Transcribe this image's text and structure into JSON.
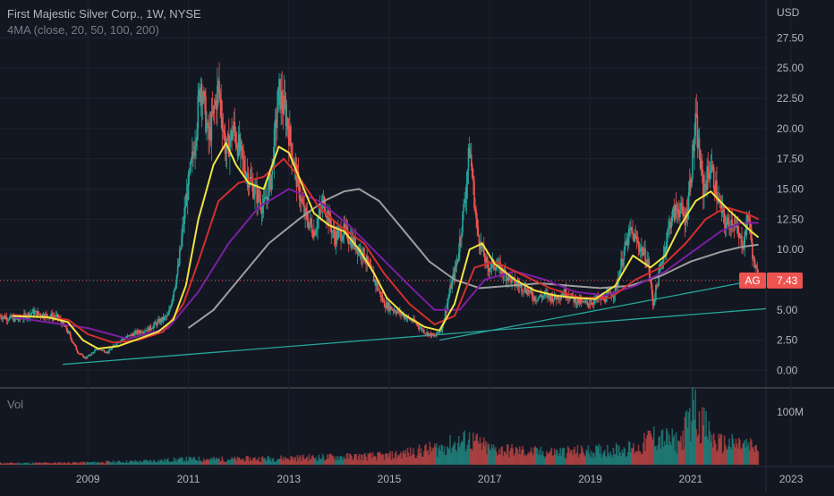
{
  "header": {
    "title": "First Majestic Silver Corp., 1W, NYSE",
    "indicator": "4MA (close, 20, 50, 100, 200)"
  },
  "chart_data": {
    "type": "line",
    "symbol": "AG",
    "last_price": "7.43",
    "currency_label": "USD",
    "x_ticks": [
      "2009",
      "2011",
      "2013",
      "2015",
      "2017",
      "2019",
      "2021",
      "2023"
    ],
    "y_ticks": [
      "27.50",
      "25.00",
      "22.50",
      "20.00",
      "17.50",
      "15.00",
      "12.50",
      "10.00",
      "7.50",
      "5.00",
      "2.50",
      "0.00"
    ],
    "ylim": [
      -1.0,
      29.0
    ],
    "xlim": [
      2007.25,
      2022.5
    ],
    "volume_label": "Vol",
    "volume_tick": "100M",
    "grid": true,
    "colors": {
      "background": "#131722",
      "up": "#26a69a",
      "down": "#ef5350",
      "ma20": "#f0e442",
      "ma50": "#d32f2f",
      "ma100": "#7b1fa2",
      "ma200": "#9e9e9e",
      "trendline": "#26a69a",
      "price_line": "#ef5350"
    },
    "price_points": [
      [
        2007.25,
        4.5
      ],
      [
        2007.6,
        4.2
      ],
      [
        2007.9,
        4.8
      ],
      [
        2008.1,
        4.6
      ],
      [
        2008.4,
        4.4
      ],
      [
        2008.6,
        3.2
      ],
      [
        2008.8,
        1.5
      ],
      [
        2008.95,
        1.0
      ],
      [
        2009.2,
        1.8
      ],
      [
        2009.4,
        1.5
      ],
      [
        2009.6,
        2.4
      ],
      [
        2009.8,
        2.8
      ],
      [
        2010.0,
        3.2
      ],
      [
        2010.2,
        3.4
      ],
      [
        2010.4,
        4.0
      ],
      [
        2010.6,
        4.5
      ],
      [
        2010.8,
        8.5
      ],
      [
        2010.95,
        14.0
      ],
      [
        2011.1,
        18.0
      ],
      [
        2011.25,
        24.0
      ],
      [
        2011.4,
        19.0
      ],
      [
        2011.6,
        23.5
      ],
      [
        2011.75,
        18.0
      ],
      [
        2011.9,
        20.0
      ],
      [
        2012.1,
        17.0
      ],
      [
        2012.3,
        15.0
      ],
      [
        2012.5,
        13.5
      ],
      [
        2012.65,
        16.0
      ],
      [
        2012.8,
        23.0
      ],
      [
        2012.95,
        21.0
      ],
      [
        2013.15,
        16.0
      ],
      [
        2013.3,
        13.0
      ],
      [
        2013.5,
        11.5
      ],
      [
        2013.7,
        14.0
      ],
      [
        2013.9,
        11.0
      ],
      [
        2014.1,
        11.5
      ],
      [
        2014.3,
        10.5
      ],
      [
        2014.5,
        9.5
      ],
      [
        2014.7,
        7.5
      ],
      [
        2014.9,
        5.5
      ],
      [
        2015.1,
        5.0
      ],
      [
        2015.3,
        4.5
      ],
      [
        2015.5,
        4.0
      ],
      [
        2015.7,
        3.2
      ],
      [
        2015.9,
        2.8
      ],
      [
        2016.05,
        3.5
      ],
      [
        2016.2,
        6.5
      ],
      [
        2016.35,
        9.0
      ],
      [
        2016.5,
        14.0
      ],
      [
        2016.6,
        18.5
      ],
      [
        2016.75,
        11.5
      ],
      [
        2016.95,
        8.5
      ],
      [
        2017.1,
        8.8
      ],
      [
        2017.3,
        8.0
      ],
      [
        2017.5,
        7.2
      ],
      [
        2017.7,
        6.8
      ],
      [
        2017.9,
        6.0
      ],
      [
        2018.1,
        6.2
      ],
      [
        2018.3,
        6.0
      ],
      [
        2018.5,
        6.5
      ],
      [
        2018.7,
        5.8
      ],
      [
        2018.9,
        5.5
      ],
      [
        2019.1,
        5.8
      ],
      [
        2019.3,
        6.0
      ],
      [
        2019.5,
        6.5
      ],
      [
        2019.65,
        9.5
      ],
      [
        2019.8,
        11.5
      ],
      [
        2019.95,
        10.5
      ],
      [
        2020.15,
        9.0
      ],
      [
        2020.25,
        5.5
      ],
      [
        2020.45,
        9.5
      ],
      [
        2020.6,
        12.5
      ],
      [
        2020.75,
        13.5
      ],
      [
        2020.9,
        12.5
      ],
      [
        2021.0,
        16.0
      ],
      [
        2021.1,
        20.5
      ],
      [
        2021.25,
        15.0
      ],
      [
        2021.4,
        17.0
      ],
      [
        2021.55,
        14.0
      ],
      [
        2021.7,
        12.0
      ],
      [
        2021.85,
        12.5
      ],
      [
        2021.95,
        11.0
      ],
      [
        2022.05,
        10.5
      ],
      [
        2022.15,
        13.0
      ],
      [
        2022.25,
        9.0
      ],
      [
        2022.35,
        7.43
      ]
    ],
    "ma20": [
      [
        2007.5,
        4.5
      ],
      [
        2008.2,
        4.4
      ],
      [
        2008.6,
        4.0
      ],
      [
        2008.9,
        2.5
      ],
      [
        2009.2,
        1.8
      ],
      [
        2009.6,
        2.0
      ],
      [
        2010.0,
        2.6
      ],
      [
        2010.4,
        3.2
      ],
      [
        2010.7,
        4.2
      ],
      [
        2010.95,
        7.0
      ],
      [
        2011.2,
        12.5
      ],
      [
        2011.5,
        17.0
      ],
      [
        2011.75,
        18.8
      ],
      [
        2011.95,
        17.0
      ],
      [
        2012.2,
        15.5
      ],
      [
        2012.5,
        15.0
      ],
      [
        2012.8,
        18.5
      ],
      [
        2013.0,
        18.0
      ],
      [
        2013.25,
        15.5
      ],
      [
        2013.5,
        13.0
      ],
      [
        2013.8,
        12.0
      ],
      [
        2014.1,
        11.5
      ],
      [
        2014.4,
        10.0
      ],
      [
        2014.7,
        8.0
      ],
      [
        2014.95,
        6.0
      ],
      [
        2015.3,
        4.6
      ],
      [
        2015.7,
        3.6
      ],
      [
        2016.0,
        3.3
      ],
      [
        2016.3,
        5.5
      ],
      [
        2016.6,
        10.0
      ],
      [
        2016.85,
        10.5
      ],
      [
        2017.1,
        8.8
      ],
      [
        2017.5,
        7.5
      ],
      [
        2017.9,
        6.6
      ],
      [
        2018.3,
        6.2
      ],
      [
        2018.7,
        6.0
      ],
      [
        2019.1,
        5.9
      ],
      [
        2019.5,
        7.0
      ],
      [
        2019.85,
        9.5
      ],
      [
        2020.2,
        8.5
      ],
      [
        2020.5,
        9.5
      ],
      [
        2020.8,
        12.0
      ],
      [
        2021.1,
        14.0
      ],
      [
        2021.4,
        14.8
      ],
      [
        2021.7,
        13.5
      ],
      [
        2021.95,
        12.5
      ],
      [
        2022.2,
        11.5
      ],
      [
        2022.35,
        11.0
      ]
    ],
    "ma50": [
      [
        2007.5,
        4.6
      ],
      [
        2008.6,
        4.2
      ],
      [
        2009.0,
        3.0
      ],
      [
        2009.5,
        2.3
      ],
      [
        2010.0,
        2.5
      ],
      [
        2010.5,
        3.2
      ],
      [
        2010.9,
        5.5
      ],
      [
        2011.2,
        9.0
      ],
      [
        2011.6,
        14.0
      ],
      [
        2012.0,
        15.5
      ],
      [
        2012.5,
        16.0
      ],
      [
        2012.9,
        17.5
      ],
      [
        2013.2,
        16.0
      ],
      [
        2013.6,
        13.5
      ],
      [
        2014.0,
        12.0
      ],
      [
        2014.5,
        10.5
      ],
      [
        2014.9,
        8.0
      ],
      [
        2015.4,
        5.5
      ],
      [
        2015.9,
        3.8
      ],
      [
        2016.3,
        4.5
      ],
      [
        2016.7,
        8.5
      ],
      [
        2017.1,
        9.0
      ],
      [
        2017.6,
        8.0
      ],
      [
        2018.2,
        6.8
      ],
      [
        2018.8,
        6.0
      ],
      [
        2019.4,
        6.0
      ],
      [
        2019.9,
        7.5
      ],
      [
        2020.4,
        8.5
      ],
      [
        2020.9,
        10.5
      ],
      [
        2021.3,
        12.5
      ],
      [
        2021.7,
        13.5
      ],
      [
        2022.1,
        13.0
      ],
      [
        2022.35,
        12.5
      ]
    ],
    "ma100": [
      [
        2007.5,
        4.4
      ],
      [
        2009.0,
        3.5
      ],
      [
        2009.8,
        2.6
      ],
      [
        2010.6,
        3.5
      ],
      [
        2011.2,
        6.5
      ],
      [
        2011.8,
        10.5
      ],
      [
        2012.4,
        13.5
      ],
      [
        2013.0,
        15.0
      ],
      [
        2013.6,
        14.0
      ],
      [
        2014.2,
        12.0
      ],
      [
        2014.8,
        9.5
      ],
      [
        2015.4,
        7.0
      ],
      [
        2015.9,
        5.0
      ],
      [
        2016.4,
        5.0
      ],
      [
        2016.9,
        7.5
      ],
      [
        2017.5,
        8.2
      ],
      [
        2018.1,
        7.5
      ],
      [
        2018.7,
        6.5
      ],
      [
        2019.3,
        6.2
      ],
      [
        2019.9,
        7.0
      ],
      [
        2020.5,
        8.2
      ],
      [
        2021.1,
        10.0
      ],
      [
        2021.6,
        11.5
      ],
      [
        2022.0,
        12.2
      ],
      [
        2022.35,
        12.2
      ]
    ],
    "ma200": [
      [
        2011.0,
        3.5
      ],
      [
        2011.5,
        5.0
      ],
      [
        2012.0,
        7.5
      ],
      [
        2012.6,
        10.5
      ],
      [
        2013.2,
        12.5
      ],
      [
        2013.7,
        14.0
      ],
      [
        2014.1,
        14.8
      ],
      [
        2014.4,
        15.0
      ],
      [
        2014.8,
        14.0
      ],
      [
        2015.3,
        11.5
      ],
      [
        2015.8,
        9.0
      ],
      [
        2016.3,
        7.5
      ],
      [
        2016.8,
        6.8
      ],
      [
        2017.4,
        7.0
      ],
      [
        2018.0,
        7.2
      ],
      [
        2018.6,
        7.0
      ],
      [
        2019.2,
        6.8
      ],
      [
        2019.8,
        7.0
      ],
      [
        2020.4,
        7.8
      ],
      [
        2021.0,
        9.0
      ],
      [
        2021.6,
        9.8
      ],
      [
        2022.0,
        10.2
      ],
      [
        2022.35,
        10.4
      ]
    ],
    "trendlines": [
      [
        [
          2008.5,
          0.5
        ],
        [
          2022.5,
          5.1
        ]
      ],
      [
        [
          2016.0,
          2.5
        ],
        [
          2022.35,
          7.5
        ]
      ]
    ],
    "volume_points": [
      [
        2008.0,
        3
      ],
      [
        2009.0,
        4
      ],
      [
        2010.0,
        6
      ],
      [
        2011.0,
        10
      ],
      [
        2012.0,
        10
      ],
      [
        2013.0,
        12
      ],
      [
        2014.0,
        14
      ],
      [
        2015.0,
        16
      ],
      [
        2016.0,
        30
      ],
      [
        2016.6,
        45
      ],
      [
        2017.0,
        28
      ],
      [
        2018.0,
        22
      ],
      [
        2019.0,
        24
      ],
      [
        2020.0,
        30
      ],
      [
        2020.2,
        50
      ],
      [
        2020.8,
        40
      ],
      [
        2021.05,
        100
      ],
      [
        2021.5,
        38
      ],
      [
        2022.0,
        36
      ],
      [
        2022.35,
        30
      ]
    ]
  }
}
